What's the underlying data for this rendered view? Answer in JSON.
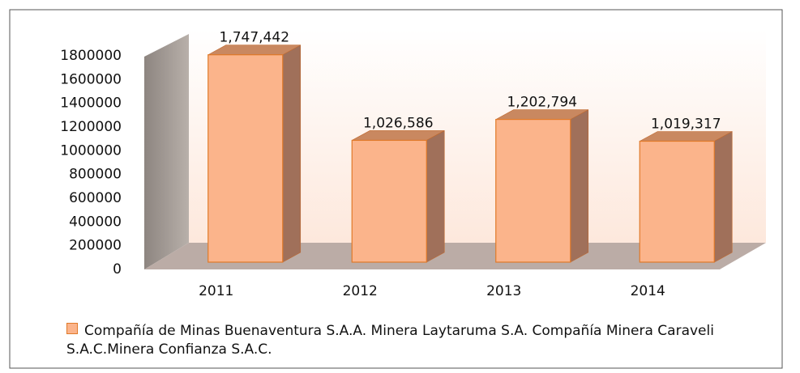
{
  "chart_data": {
    "type": "bar3d",
    "categories": [
      "2011",
      "2012",
      "2013",
      "2014"
    ],
    "series": [
      {
        "name": "Compañía de Minas Buenaventura S.A.A. Minera Laytaruma S.A. Compañía Minera Caraveli S.A.C.Minera Confianza S.A.C.",
        "color": "#fbb48b",
        "values": [
          1747442,
          1026586,
          1202794,
          1019317
        ],
        "value_labels": [
          "1,747,442",
          "1,026,586",
          "1,202,794",
          "1,019,317"
        ]
      }
    ],
    "ylim": [
      0,
      1800000
    ],
    "yticks": [
      0,
      200000,
      400000,
      600000,
      800000,
      1000000,
      1200000,
      1400000,
      1600000,
      1800000
    ],
    "legend": "bottom"
  }
}
